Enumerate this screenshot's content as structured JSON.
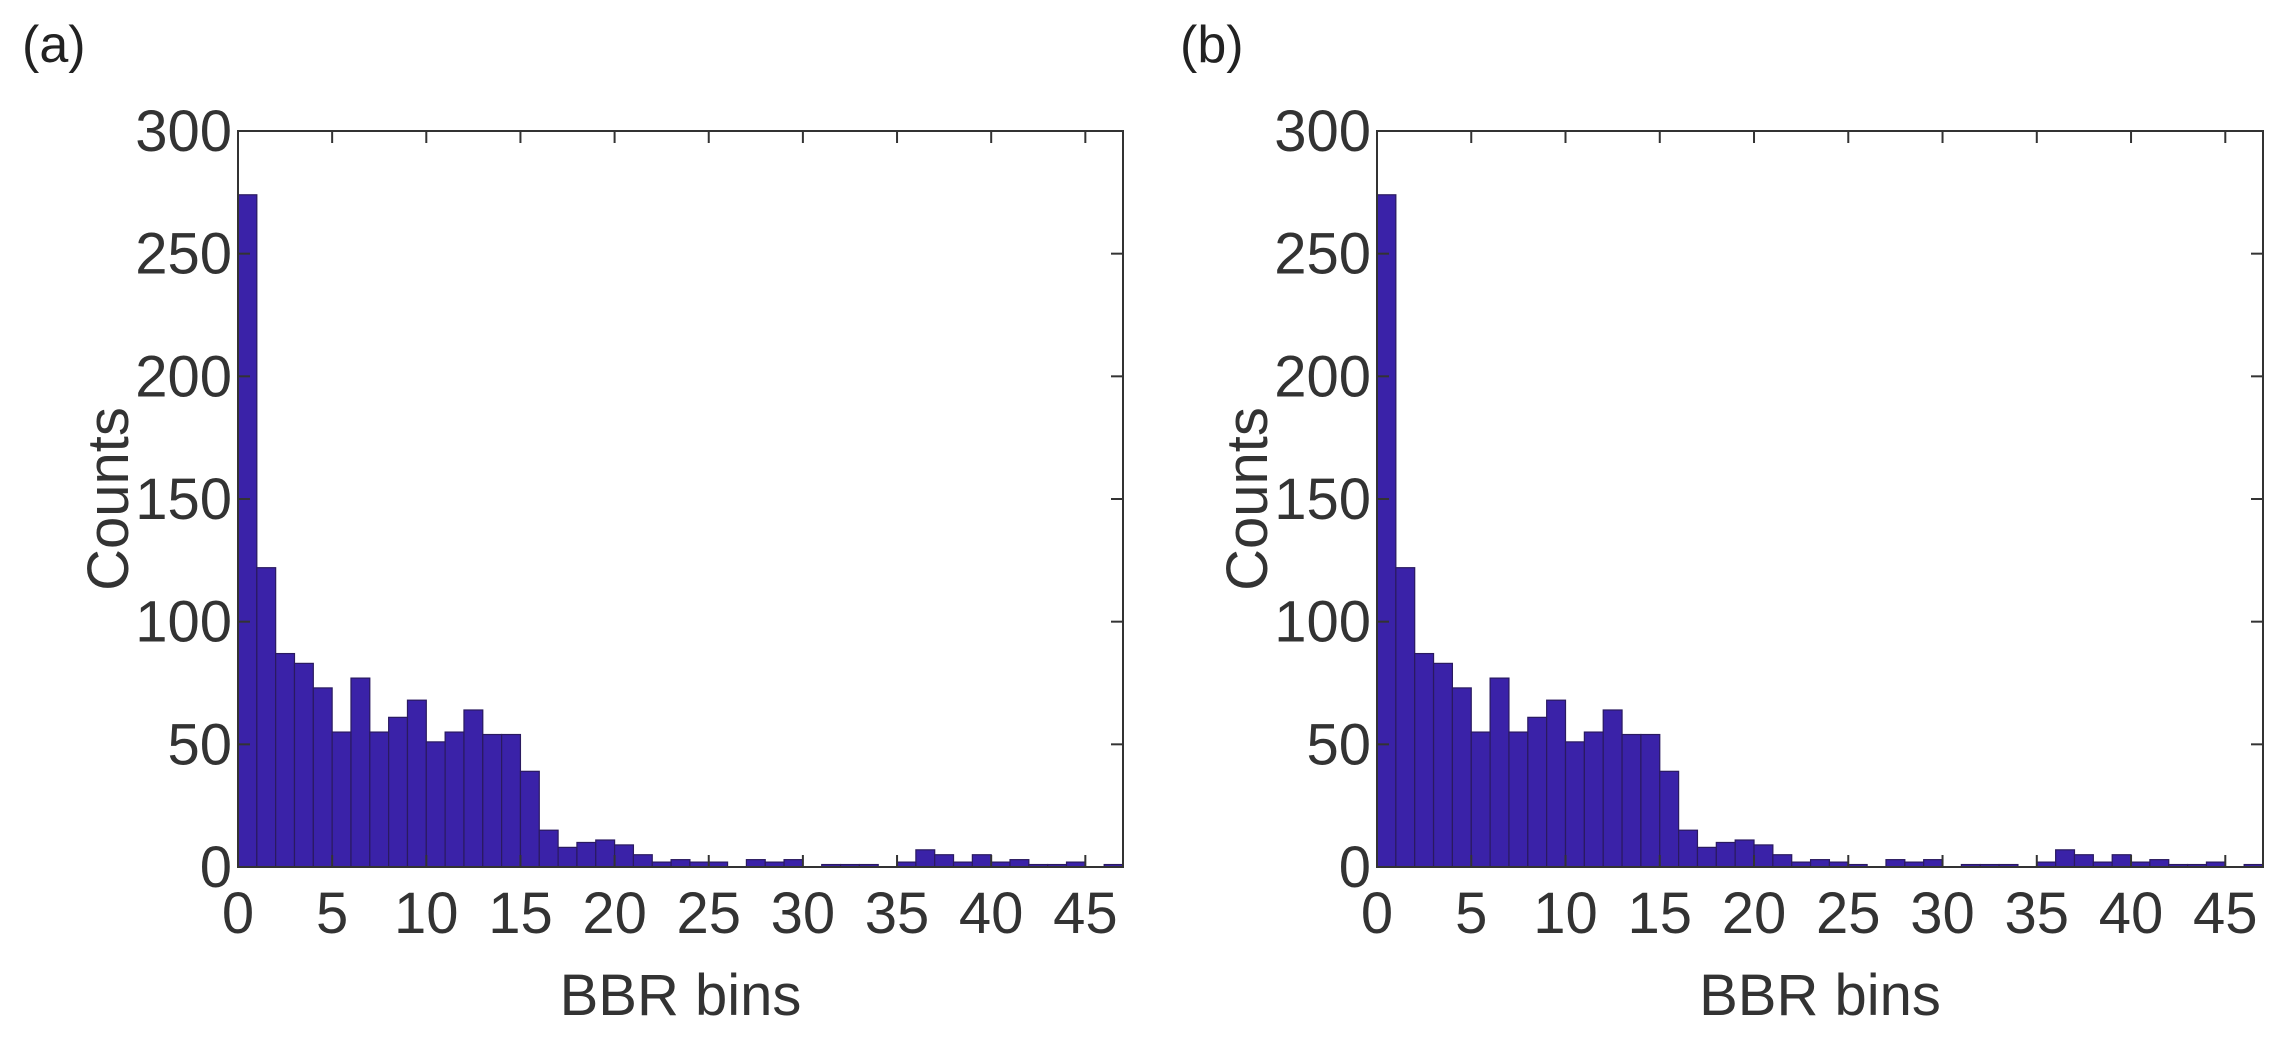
{
  "chart_data": [
    {
      "type": "histogram",
      "panel_label": "(a)",
      "xlabel": "BBR bins",
      "ylabel": "Counts",
      "color": "#3a22a8",
      "bins": [
        0,
        1,
        2,
        3,
        4,
        5,
        6,
        7,
        8,
        9,
        10,
        11,
        12,
        13,
        14,
        15,
        16,
        17,
        18,
        19,
        20,
        21,
        22,
        23,
        24,
        25,
        26,
        27,
        28,
        29,
        30,
        31,
        32,
        33,
        34,
        35,
        36,
        37,
        38,
        39,
        40,
        41,
        42,
        43,
        44,
        45,
        46,
        47
      ],
      "counts": [
        274,
        122,
        87,
        83,
        73,
        55,
        77,
        55,
        61,
        68,
        51,
        55,
        64,
        54,
        54,
        39,
        15,
        8,
        10,
        11,
        9,
        5,
        2,
        3,
        2,
        2,
        0,
        3,
        2,
        3,
        0,
        1,
        1,
        1,
        0,
        2,
        7,
        5,
        2,
        5,
        2,
        3,
        1,
        1,
        2,
        0,
        1
      ],
      "xlim": [
        0,
        47
      ],
      "ylim": [
        0,
        300
      ],
      "xticks": [
        0,
        5,
        10,
        15,
        20,
        25,
        30,
        35,
        40,
        45
      ],
      "yticks": [
        0,
        50,
        100,
        150,
        200,
        250,
        300
      ]
    },
    {
      "type": "histogram",
      "panel_label": "(b)",
      "xlabel": "BBR bins",
      "ylabel": "Counts",
      "color": "#3a22a8",
      "bins": [
        0,
        1,
        2,
        3,
        4,
        5,
        6,
        7,
        8,
        9,
        10,
        11,
        12,
        13,
        14,
        15,
        16,
        17,
        18,
        19,
        20,
        21,
        22,
        23,
        24,
        25,
        26,
        27,
        28,
        29,
        30,
        31,
        32,
        33,
        34,
        35,
        36,
        37,
        38,
        39,
        40,
        41,
        42,
        43,
        44,
        45,
        46,
        47
      ],
      "counts": [
        274,
        122,
        87,
        83,
        73,
        55,
        77,
        55,
        61,
        68,
        51,
        55,
        64,
        54,
        54,
        39,
        15,
        8,
        10,
        11,
        9,
        5,
        2,
        3,
        2,
        1,
        0,
        3,
        2,
        3,
        0,
        1,
        1,
        1,
        0,
        2,
        7,
        5,
        2,
        5,
        2,
        3,
        1,
        1,
        2,
        0,
        1
      ],
      "xlim": [
        0,
        47
      ],
      "ylim": [
        0,
        300
      ],
      "xticks": [
        0,
        5,
        10,
        15,
        20,
        25,
        30,
        35,
        40,
        45
      ],
      "yticks": [
        0,
        50,
        100,
        150,
        200,
        250,
        300
      ]
    }
  ]
}
